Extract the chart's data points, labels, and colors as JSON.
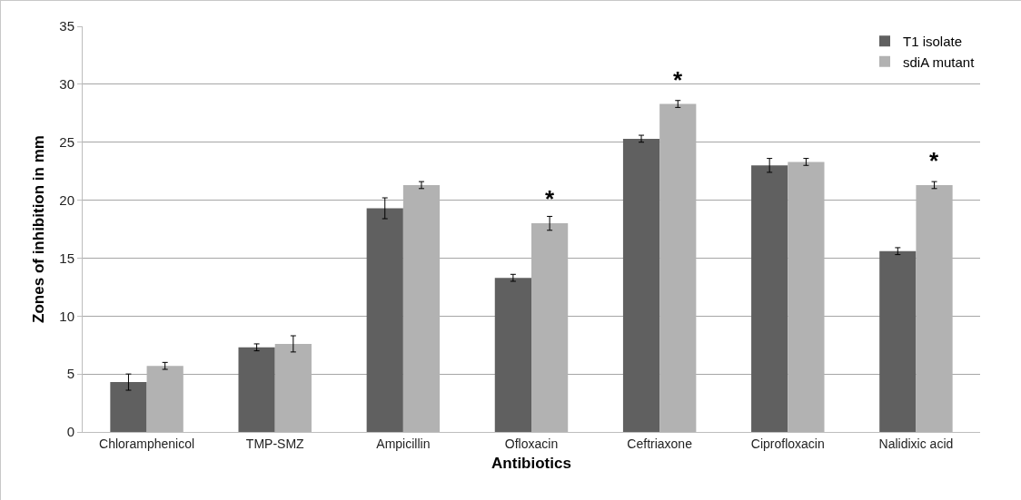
{
  "chart_data": {
    "type": "bar",
    "xlabel": "Antibiotics",
    "ylabel": "Zones of inhibition in mm",
    "categories": [
      "Chloramphenicol",
      "TMP-SMZ",
      "Ampicillin",
      "Ofloxacin",
      "Ceftriaxone",
      "Ciprofloxacin",
      "Nalidixic acid"
    ],
    "series": [
      {
        "name": "T1 isolate",
        "color": "#606060",
        "values": [
          4.3,
          7.3,
          19.3,
          13.3,
          25.3,
          23.0,
          15.6
        ],
        "errors": [
          0.7,
          0.3,
          0.9,
          0.3,
          0.3,
          0.6,
          0.3
        ]
      },
      {
        "name": "sdiA mutant",
        "color": "#b2b2b2",
        "values": [
          5.7,
          7.6,
          21.3,
          18.0,
          28.3,
          23.3,
          21.3
        ],
        "errors": [
          0.3,
          0.7,
          0.3,
          0.6,
          0.3,
          0.3,
          0.3
        ]
      }
    ],
    "ylim": [
      0,
      35
    ],
    "yticks": [
      0,
      5,
      10,
      15,
      20,
      25,
      30,
      35
    ],
    "grid": "y",
    "legend": "top right",
    "annotations": [
      {
        "text": "*",
        "x": "Ofloxacin",
        "y": 18.0
      },
      {
        "text": "*",
        "x": "Ceftriaxone",
        "y": 28.3
      },
      {
        "text": "*",
        "x": "Nalidixic acid",
        "y": 21.3
      }
    ]
  }
}
